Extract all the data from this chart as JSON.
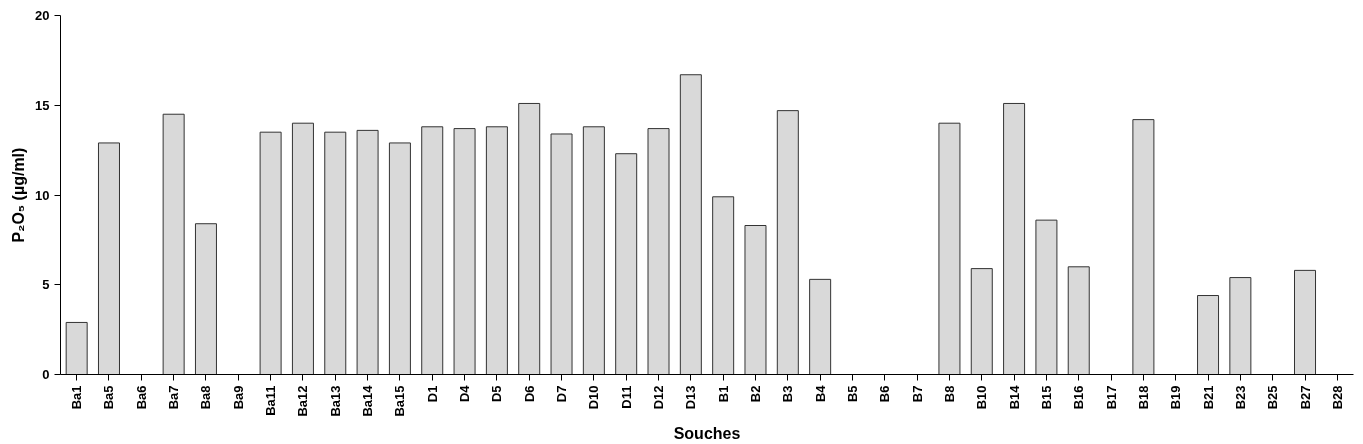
{
  "chart_data": {
    "type": "bar",
    "xlabel": "Souches",
    "ylabel": "P₂O₅ (µg/ml)",
    "categories": [
      "Ba1",
      "Ba5",
      "Ba6",
      "Ba7",
      "Ba8",
      "Ba9",
      "Ba11",
      "Ba12",
      "Ba13",
      "Ba14",
      "Ba15",
      "D1",
      "D4",
      "D5",
      "D6",
      "D7",
      "D10",
      "D11",
      "D12",
      "D13",
      "B1",
      "B2",
      "B3",
      "B4",
      "B5",
      "B6",
      "B7",
      "B8",
      "B10",
      "B14",
      "B15",
      "B16",
      "B17",
      "B18",
      "B19",
      "B21",
      "B23",
      "B25",
      "B27",
      "B28"
    ],
    "values": [
      2.9,
      12.9,
      0,
      14.5,
      8.4,
      0,
      13.5,
      14.0,
      13.5,
      13.6,
      12.9,
      13.8,
      13.7,
      13.8,
      15.1,
      13.4,
      13.8,
      12.3,
      13.7,
      16.7,
      9.9,
      8.3,
      14.7,
      5.3,
      0,
      0,
      0,
      14.0,
      5.9,
      15.1,
      8.6,
      6.0,
      0,
      14.2,
      0,
      4.4,
      5.4,
      0,
      5.8,
      0
    ],
    "color": "#d9d9d9",
    "ylim": [
      0,
      20
    ],
    "yticks": [
      0,
      5,
      10,
      15,
      20
    ],
    "grid": false
  }
}
